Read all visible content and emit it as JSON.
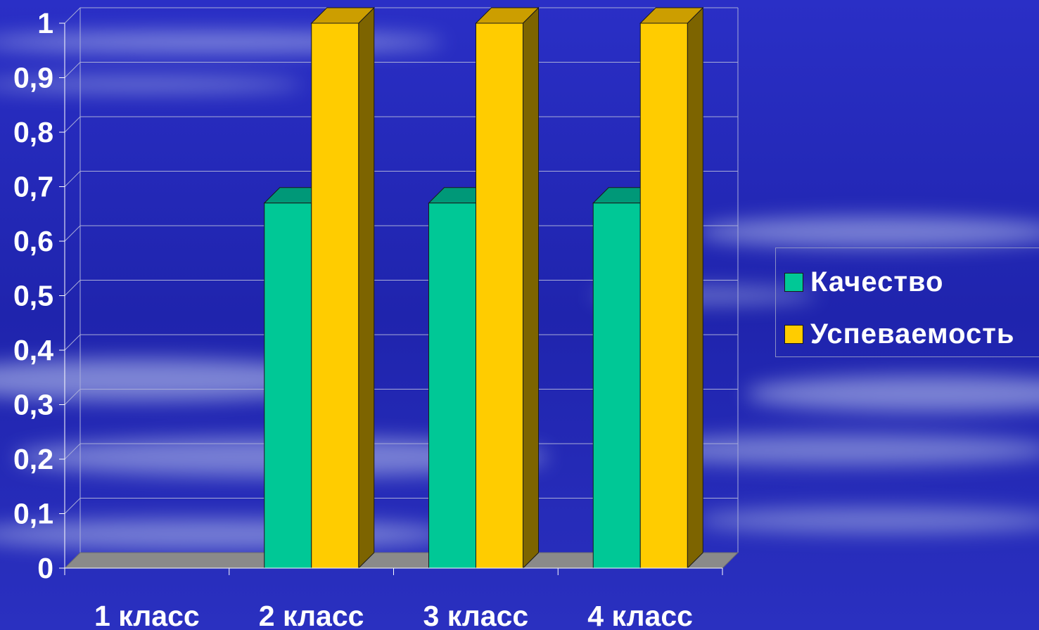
{
  "chart_data": {
    "type": "bar",
    "categories": [
      "1 класс",
      "2 класс",
      "3 класс",
      "4 класс"
    ],
    "series": [
      {
        "name": "Качество",
        "values": [
          0,
          0.67,
          0.67,
          0.67
        ]
      },
      {
        "name": "Успеваемость",
        "values": [
          0,
          1,
          1,
          1
        ]
      }
    ],
    "y_ticks": [
      "0",
      "0,1",
      "0,2",
      "0,3",
      "0,4",
      "0,5",
      "0,6",
      "0,7",
      "0,8",
      "0,9",
      "1"
    ],
    "ylim": [
      0,
      1
    ],
    "grid": true,
    "legend_position": "right",
    "style": "3d-column"
  },
  "colors": {
    "background": "#2026b8",
    "series_front": [
      "#00c896",
      "#ffcc00"
    ],
    "series_top": [
      "#009878",
      "#cc9e00"
    ],
    "series_side": [
      "#007a5e",
      "#7d6400"
    ],
    "floor": "#8a8a8a",
    "grid": "#a8acd8"
  }
}
